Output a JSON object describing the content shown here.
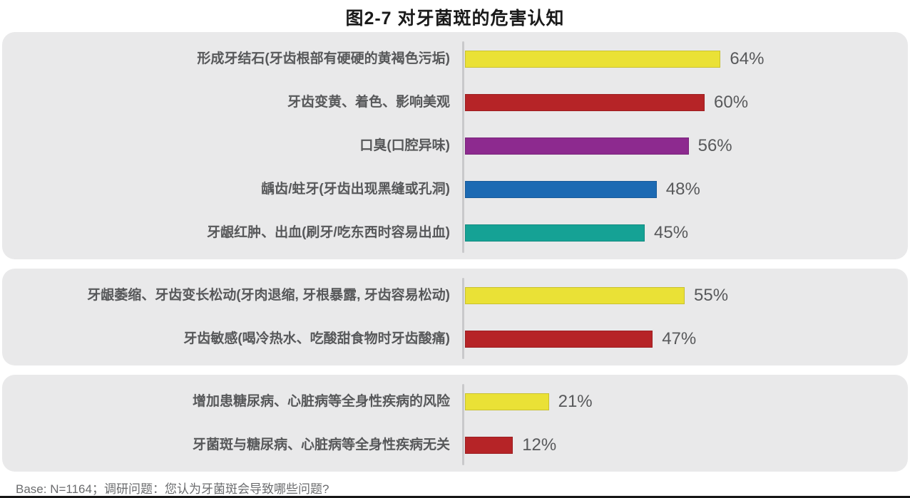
{
  "title": "图2-7 对牙菌斑的危害认知",
  "footer": "Base: N=1164；调研问题：您认为牙菌斑会导致哪些问题?",
  "chart_data": {
    "type": "bar",
    "orientation": "horizontal",
    "title": "图2-7 对牙菌斑的危害认知",
    "xlim": [
      0,
      100
    ],
    "value_suffix": "%",
    "legend": "none",
    "grid": "off",
    "note": "Base: N=1164；调研问题：您认为牙菌斑会导致哪些问题?",
    "groups": [
      {
        "items": [
          {
            "label": "形成牙结石(牙齿根部有硬硬的黄褐色污垢)",
            "value": 64,
            "color": "#eae136"
          },
          {
            "label": "牙齿变黄、着色、影响美观",
            "value": 60,
            "color": "#b62427"
          },
          {
            "label": "口臭(口腔异味)",
            "value": 56,
            "color": "#8d2a8f"
          },
          {
            "label": "龋齿/蛀牙(牙齿出现黑缝或孔洞)",
            "value": 48,
            "color": "#1c6ab3"
          },
          {
            "label": "牙龈红肿、出血(刷牙/吃东西时容易出血)",
            "value": 45,
            "color": "#15a295"
          }
        ]
      },
      {
        "items": [
          {
            "label": "牙龈萎缩、牙齿变长松动(牙肉退缩, 牙根暴露, 牙齿容易松动)",
            "value": 55,
            "color": "#eae136"
          },
          {
            "label": "牙齿敏感(喝冷热水、吃酸甜食物时牙齿酸痛)",
            "value": 47,
            "color": "#b62427"
          }
        ]
      },
      {
        "items": [
          {
            "label": "增加患糖尿病、心脏病等全身性疾病的风险",
            "value": 21,
            "color": "#eae136"
          },
          {
            "label": "牙菌斑与糖尿病、心脏病等全身性疾病无关",
            "value": 12,
            "color": "#b62427"
          }
        ]
      }
    ]
  },
  "style": {
    "panel_bg": "#e9e9ea",
    "axis_color": "#c9c9cb",
    "label_color": "#57585a",
    "value_color": "#58595b",
    "title_color": "#1a1a1a",
    "footer_color": "#6b6c6e"
  }
}
